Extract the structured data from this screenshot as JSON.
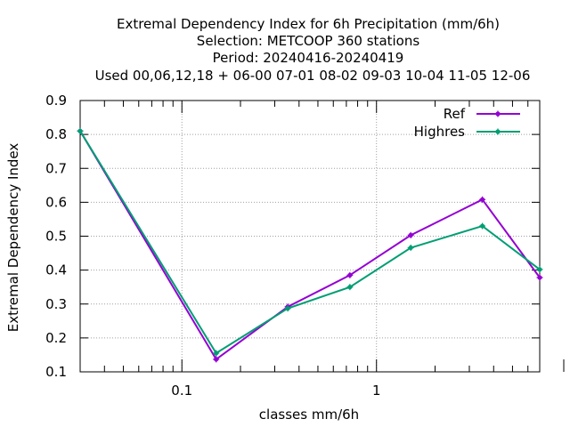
{
  "chart_data": {
    "type": "line",
    "title_lines": [
      "Extremal Dependency Index  for 6h Precipitation (mm/6h)",
      "Selection: METCOOP    360 stations",
      "Period: 20240416-20240419",
      "Used  00,06,12,18 + 06-00 07-01 08-02 09-03 10-04 11-05 12-06"
    ],
    "xlabel": "classes mm/6h",
    "ylabel": "Extremal Dependency Index",
    "x_scale": "log",
    "xlim": [
      0.03,
      6.9
    ],
    "ylim": [
      0.1,
      0.9
    ],
    "x_ticks": [
      {
        "value": 0.1,
        "label": "0.1"
      },
      {
        "value": 1,
        "label": "1"
      }
    ],
    "y_ticks": [
      {
        "value": 0.1,
        "label": "0.1"
      },
      {
        "value": 0.2,
        "label": "0.2"
      },
      {
        "value": 0.3,
        "label": "0.3"
      },
      {
        "value": 0.4,
        "label": "0.4"
      },
      {
        "value": 0.5,
        "label": "0.5"
      },
      {
        "value": 0.6,
        "label": "0.6"
      },
      {
        "value": 0.7,
        "label": "0.7"
      },
      {
        "value": 0.8,
        "label": "0.8"
      },
      {
        "value": 0.9,
        "label": "0.9"
      }
    ],
    "grid": true,
    "legend_position": "top-right",
    "x": [
      0.03,
      0.15,
      0.35,
      0.73,
      1.5,
      3.5,
      6.9
    ],
    "series": [
      {
        "name": "Ref",
        "color": "#9400d3",
        "values": [
          0.81,
          0.137,
          0.292,
          0.385,
          0.503,
          0.608,
          0.378
        ]
      },
      {
        "name": "Highres",
        "color": "#009e73",
        "values": [
          0.81,
          0.155,
          0.287,
          0.35,
          0.466,
          0.53,
          0.402
        ]
      }
    ]
  }
}
